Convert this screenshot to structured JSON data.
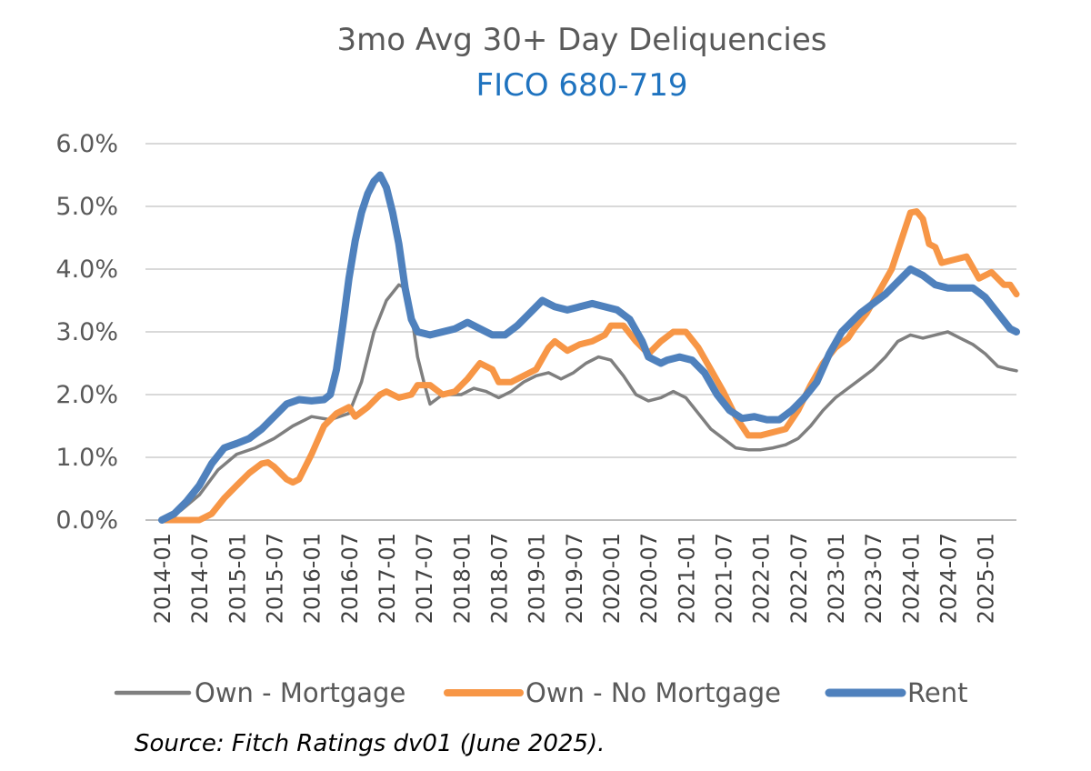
{
  "chart_data": {
    "type": "line",
    "title": "3mo Avg 30+ Day Deliquencies",
    "subtitle": "FICO 680-719",
    "source": "Source: Fitch Ratings dv01 (June 2025).",
    "xlabel": "",
    "ylabel": "",
    "ylim": [
      0,
      6
    ],
    "yticks": [
      "0.0%",
      "1.0%",
      "2.0%",
      "3.0%",
      "4.0%",
      "5.0%",
      "6.0%"
    ],
    "xticks": [
      "2014-01",
      "2014-07",
      "2015-01",
      "2015-07",
      "2016-01",
      "2016-07",
      "2017-01",
      "2017-07",
      "2018-01",
      "2018-07",
      "2019-01",
      "2019-07",
      "2020-01",
      "2020-07",
      "2021-01",
      "2021-07",
      "2022-01",
      "2022-07",
      "2023-01",
      "2023-07",
      "2024-01",
      "2024-07",
      "2025-01"
    ],
    "x_range_months": [
      0,
      137
    ],
    "grid": true,
    "legend_position": "bottom",
    "series": [
      {
        "name": "Own - Mortgage",
        "color": "#7f7f7f",
        "points": [
          [
            0,
            0
          ],
          [
            3,
            0.15
          ],
          [
            6,
            0.4
          ],
          [
            9,
            0.8
          ],
          [
            12,
            1.05
          ],
          [
            15,
            1.15
          ],
          [
            18,
            1.3
          ],
          [
            21,
            1.5
          ],
          [
            24,
            1.65
          ],
          [
            27,
            1.6
          ],
          [
            30,
            1.7
          ],
          [
            32,
            2.2
          ],
          [
            34,
            3.0
          ],
          [
            36,
            3.5
          ],
          [
            38,
            3.75
          ],
          [
            39,
            3.7
          ],
          [
            40,
            3.3
          ],
          [
            41,
            2.6
          ],
          [
            42,
            2.2
          ],
          [
            43,
            1.85
          ],
          [
            45,
            2.0
          ],
          [
            48,
            2.0
          ],
          [
            50,
            2.1
          ],
          [
            52,
            2.05
          ],
          [
            54,
            1.95
          ],
          [
            56,
            2.05
          ],
          [
            58,
            2.2
          ],
          [
            60,
            2.3
          ],
          [
            62,
            2.35
          ],
          [
            64,
            2.25
          ],
          [
            66,
            2.35
          ],
          [
            68,
            2.5
          ],
          [
            70,
            2.6
          ],
          [
            72,
            2.55
          ],
          [
            74,
            2.3
          ],
          [
            76,
            2.0
          ],
          [
            78,
            1.9
          ],
          [
            80,
            1.95
          ],
          [
            82,
            2.05
          ],
          [
            84,
            1.95
          ],
          [
            86,
            1.7
          ],
          [
            88,
            1.45
          ],
          [
            90,
            1.3
          ],
          [
            92,
            1.15
          ],
          [
            94,
            1.12
          ],
          [
            96,
            1.12
          ],
          [
            98,
            1.15
          ],
          [
            100,
            1.2
          ],
          [
            102,
            1.3
          ],
          [
            104,
            1.5
          ],
          [
            106,
            1.75
          ],
          [
            108,
            1.95
          ],
          [
            110,
            2.1
          ],
          [
            112,
            2.25
          ],
          [
            114,
            2.4
          ],
          [
            116,
            2.6
          ],
          [
            118,
            2.85
          ],
          [
            120,
            2.95
          ],
          [
            122,
            2.9
          ],
          [
            124,
            2.95
          ],
          [
            126,
            3.0
          ],
          [
            128,
            2.9
          ],
          [
            130,
            2.8
          ],
          [
            132,
            2.65
          ],
          [
            134,
            2.45
          ],
          [
            136,
            2.4
          ],
          [
            137,
            2.38
          ]
        ]
      },
      {
        "name": "Own - No Mortgage",
        "color": "#f79646",
        "points": [
          [
            0,
            0
          ],
          [
            3,
            0
          ],
          [
            6,
            0
          ],
          [
            8,
            0.1
          ],
          [
            10,
            0.35
          ],
          [
            12,
            0.55
          ],
          [
            14,
            0.75
          ],
          [
            16,
            0.9
          ],
          [
            17,
            0.92
          ],
          [
            18,
            0.85
          ],
          [
            20,
            0.65
          ],
          [
            21,
            0.6
          ],
          [
            22,
            0.65
          ],
          [
            24,
            1.05
          ],
          [
            26,
            1.5
          ],
          [
            28,
            1.7
          ],
          [
            30,
            1.8
          ],
          [
            31,
            1.65
          ],
          [
            33,
            1.8
          ],
          [
            35,
            2.0
          ],
          [
            36,
            2.05
          ],
          [
            38,
            1.95
          ],
          [
            40,
            2.0
          ],
          [
            41,
            2.15
          ],
          [
            43,
            2.15
          ],
          [
            45,
            2.0
          ],
          [
            47,
            2.05
          ],
          [
            49,
            2.25
          ],
          [
            51,
            2.5
          ],
          [
            53,
            2.4
          ],
          [
            54,
            2.2
          ],
          [
            56,
            2.2
          ],
          [
            58,
            2.3
          ],
          [
            60,
            2.4
          ],
          [
            62,
            2.75
          ],
          [
            63,
            2.85
          ],
          [
            65,
            2.7
          ],
          [
            67,
            2.8
          ],
          [
            69,
            2.85
          ],
          [
            71,
            2.95
          ],
          [
            72,
            3.1
          ],
          [
            74,
            3.1
          ],
          [
            76,
            2.85
          ],
          [
            78,
            2.65
          ],
          [
            80,
            2.85
          ],
          [
            82,
            3.0
          ],
          [
            84,
            3.0
          ],
          [
            86,
            2.75
          ],
          [
            88,
            2.4
          ],
          [
            90,
            2.05
          ],
          [
            92,
            1.65
          ],
          [
            94,
            1.35
          ],
          [
            96,
            1.35
          ],
          [
            98,
            1.4
          ],
          [
            100,
            1.45
          ],
          [
            102,
            1.75
          ],
          [
            104,
            2.15
          ],
          [
            106,
            2.5
          ],
          [
            108,
            2.75
          ],
          [
            110,
            2.9
          ],
          [
            111,
            3.05
          ],
          [
            113,
            3.3
          ],
          [
            115,
            3.65
          ],
          [
            117,
            4.0
          ],
          [
            119,
            4.6
          ],
          [
            120,
            4.9
          ],
          [
            121,
            4.92
          ],
          [
            122,
            4.8
          ],
          [
            123,
            4.4
          ],
          [
            124,
            4.35
          ],
          [
            125,
            4.1
          ],
          [
            127,
            4.15
          ],
          [
            129,
            4.2
          ],
          [
            131,
            3.85
          ],
          [
            133,
            3.95
          ],
          [
            135,
            3.75
          ],
          [
            136,
            3.75
          ],
          [
            137,
            3.6
          ]
        ]
      },
      {
        "name": "Rent",
        "color": "#4f81bd",
        "points": [
          [
            0,
            0
          ],
          [
            2,
            0.1
          ],
          [
            4,
            0.3
          ],
          [
            6,
            0.55
          ],
          [
            8,
            0.9
          ],
          [
            10,
            1.15
          ],
          [
            12,
            1.22
          ],
          [
            14,
            1.3
          ],
          [
            16,
            1.45
          ],
          [
            18,
            1.65
          ],
          [
            20,
            1.85
          ],
          [
            22,
            1.92
          ],
          [
            24,
            1.9
          ],
          [
            26,
            1.92
          ],
          [
            27,
            2.0
          ],
          [
            28,
            2.4
          ],
          [
            29,
            3.1
          ],
          [
            30,
            3.85
          ],
          [
            31,
            4.45
          ],
          [
            32,
            4.9
          ],
          [
            33,
            5.2
          ],
          [
            34,
            5.4
          ],
          [
            35,
            5.5
          ],
          [
            36,
            5.3
          ],
          [
            37,
            4.9
          ],
          [
            38,
            4.4
          ],
          [
            39,
            3.7
          ],
          [
            40,
            3.2
          ],
          [
            41,
            3.0
          ],
          [
            43,
            2.95
          ],
          [
            45,
            3.0
          ],
          [
            47,
            3.05
          ],
          [
            49,
            3.15
          ],
          [
            51,
            3.05
          ],
          [
            53,
            2.95
          ],
          [
            55,
            2.95
          ],
          [
            57,
            3.1
          ],
          [
            59,
            3.3
          ],
          [
            61,
            3.5
          ],
          [
            63,
            3.4
          ],
          [
            65,
            3.35
          ],
          [
            67,
            3.4
          ],
          [
            69,
            3.45
          ],
          [
            71,
            3.4
          ],
          [
            73,
            3.35
          ],
          [
            75,
            3.2
          ],
          [
            77,
            2.85
          ],
          [
            78,
            2.6
          ],
          [
            80,
            2.5
          ],
          [
            81,
            2.55
          ],
          [
            83,
            2.6
          ],
          [
            85,
            2.55
          ],
          [
            87,
            2.35
          ],
          [
            89,
            2.0
          ],
          [
            91,
            1.75
          ],
          [
            93,
            1.62
          ],
          [
            95,
            1.65
          ],
          [
            97,
            1.6
          ],
          [
            99,
            1.6
          ],
          [
            101,
            1.75
          ],
          [
            103,
            1.95
          ],
          [
            105,
            2.2
          ],
          [
            107,
            2.65
          ],
          [
            109,
            3.0
          ],
          [
            111,
            3.2
          ],
          [
            112,
            3.3
          ],
          [
            114,
            3.45
          ],
          [
            116,
            3.6
          ],
          [
            118,
            3.8
          ],
          [
            120,
            4.0
          ],
          [
            122,
            3.9
          ],
          [
            124,
            3.75
          ],
          [
            126,
            3.7
          ],
          [
            128,
            3.7
          ],
          [
            130,
            3.7
          ],
          [
            132,
            3.55
          ],
          [
            134,
            3.3
          ],
          [
            136,
            3.05
          ],
          [
            137,
            3.0
          ]
        ]
      }
    ]
  }
}
